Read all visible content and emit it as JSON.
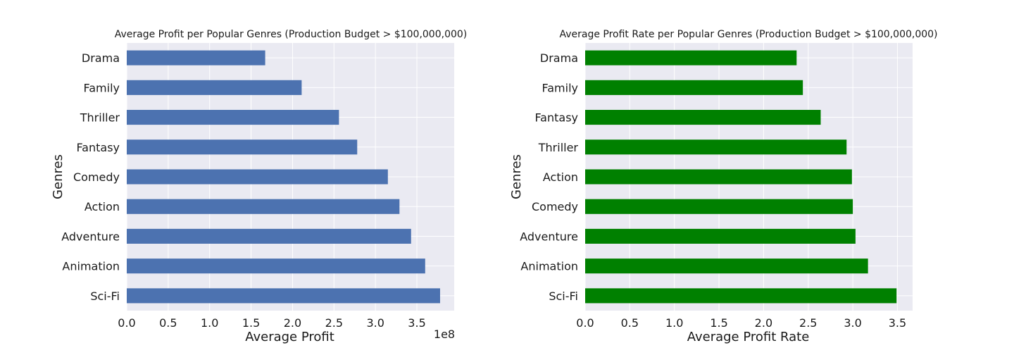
{
  "chart_data": [
    {
      "type": "bar",
      "orientation": "horizontal",
      "title": "Average Profit per Popular Genres (Production Budget > $100,000,000)",
      "xlabel": "Average Profit",
      "ylabel": "Genres",
      "categories": [
        "Drama",
        "Family",
        "Thriller",
        "Fantasy",
        "Comedy",
        "Action",
        "Adventure",
        "Animation",
        "Sci-Fi"
      ],
      "values": [
        167000000,
        211000000,
        256000000,
        278000000,
        315000000,
        329000000,
        343000000,
        360000000,
        378000000
      ],
      "xlim": [
        0,
        395000000
      ],
      "xticks": [
        0,
        50000000,
        100000000,
        150000000,
        200000000,
        250000000,
        300000000,
        350000000
      ],
      "xtick_labels": [
        "0.0",
        "0.5",
        "1.0",
        "1.5",
        "2.0",
        "2.5",
        "3.0",
        "3.5"
      ],
      "axis_offset_label": "1e8",
      "bar_color": "#4c72b0",
      "grid": true,
      "background": "#eaeaf2"
    },
    {
      "type": "bar",
      "orientation": "horizontal",
      "title": "Average Profit Rate per Popular Genres (Production Budget > $100,000,000)",
      "xlabel": "Average Profit Rate",
      "ylabel": "Genres",
      "categories": [
        "Drama",
        "Family",
        "Fantasy",
        "Thriller",
        "Action",
        "Comedy",
        "Adventure",
        "Animation",
        "Sci-Fi"
      ],
      "values": [
        2.37,
        2.44,
        2.64,
        2.93,
        2.99,
        3.0,
        3.03,
        3.17,
        3.49
      ],
      "xlim": [
        0,
        3.67
      ],
      "xticks": [
        0,
        0.5,
        1.0,
        1.5,
        2.0,
        2.5,
        3.0,
        3.5
      ],
      "xtick_labels": [
        "0.0",
        "0.5",
        "1.0",
        "1.5",
        "2.0",
        "2.5",
        "3.0",
        "3.5"
      ],
      "bar_color": "#008000",
      "grid": true,
      "background": "#eaeaf2"
    }
  ]
}
